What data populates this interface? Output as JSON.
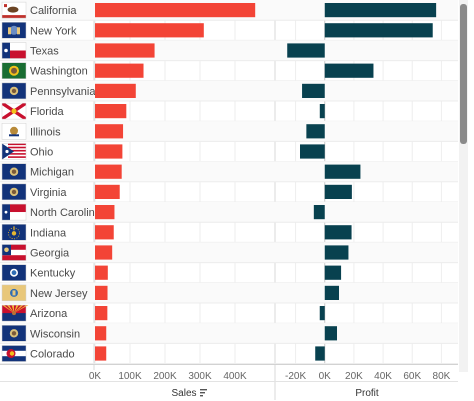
{
  "chart_data": [
    {
      "type": "bar",
      "orientation": "horizontal",
      "xlabel": "Sales",
      "xticks": [
        "0K",
        "100K",
        "200K",
        "300K",
        "400K"
      ],
      "xlim": [
        0,
        500000
      ],
      "bar_color": "#F34436",
      "categories": [
        "California",
        "New York",
        "Texas",
        "Washington",
        "Pennsylvania",
        "Florida",
        "Illinois",
        "Ohio",
        "Michigan",
        "Virginia",
        "North Carolina",
        "Indiana",
        "Georgia",
        "Kentucky",
        "New Jersey",
        "Arizona",
        "Wisconsin",
        "Colorado"
      ],
      "values": [
        457688,
        310876,
        170188,
        138641,
        116512,
        89474,
        80166,
        78258,
        76270,
        70637,
        55603,
        53555,
        49096,
        36592,
        35764,
        35282,
        32115,
        32108
      ]
    },
    {
      "type": "bar",
      "orientation": "horizontal",
      "xlabel": "Profit",
      "xticks": [
        "-20K",
        "0K",
        "20K",
        "40K",
        "60K",
        "80K"
      ],
      "xlim": [
        -30000,
        90000
      ],
      "bar_color": "#08414F",
      "categories": [
        "California",
        "New York",
        "Texas",
        "Washington",
        "Pennsylvania",
        "Florida",
        "Illinois",
        "Ohio",
        "Michigan",
        "Virginia",
        "North Carolina",
        "Indiana",
        "Georgia",
        "Kentucky",
        "New Jersey",
        "Arizona",
        "Wisconsin",
        "Colorado"
      ],
      "values": [
        76381,
        74039,
        -25729,
        33403,
        -15560,
        -3399,
        -12608,
        -16971,
        24463,
        18598,
        -7491,
        18383,
        16250,
        11200,
        9773,
        -3428,
        8402,
        -6528
      ]
    }
  ],
  "flags": [
    "california-flag-icon",
    "new-york-flag-icon",
    "texas-flag-icon",
    "washington-flag-icon",
    "pennsylvania-flag-icon",
    "florida-flag-icon",
    "illinois-flag-icon",
    "ohio-flag-icon",
    "michigan-flag-icon",
    "virginia-flag-icon",
    "north-carolina-flag-icon",
    "indiana-flag-icon",
    "georgia-flag-icon",
    "kentucky-flag-icon",
    "new-jersey-flag-icon",
    "arizona-flag-icon",
    "wisconsin-flag-icon",
    "colorado-flag-icon"
  ],
  "sort_icon": "sort-descending-icon"
}
